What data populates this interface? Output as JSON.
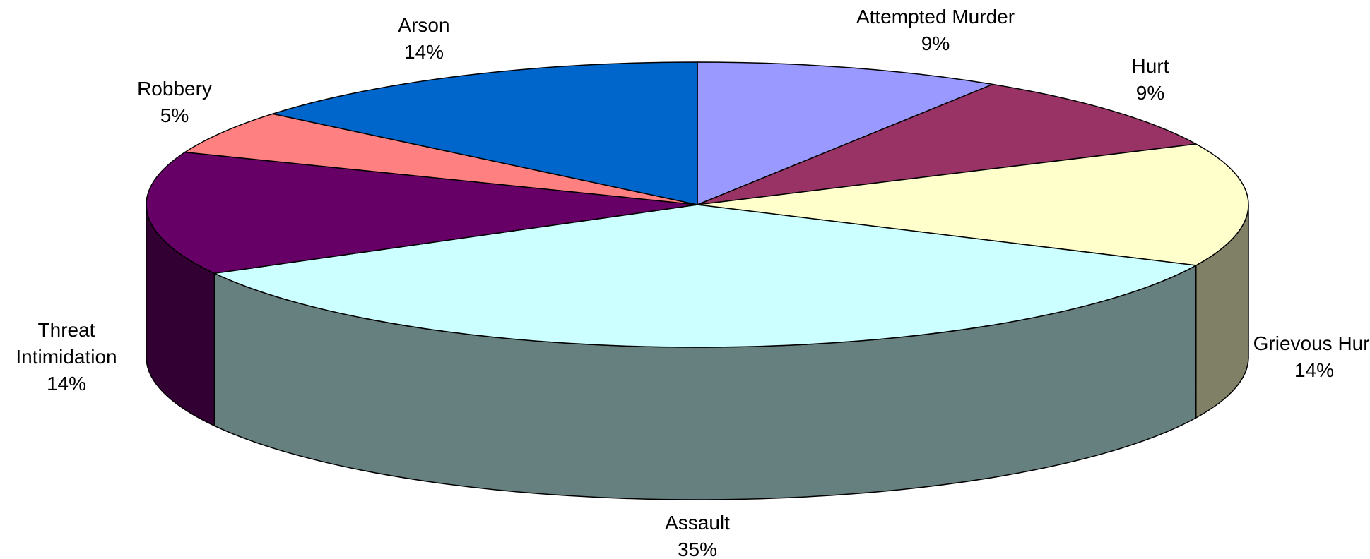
{
  "chart_data": {
    "type": "pie3d",
    "categories": [
      "Attempted Murder",
      "Hurt",
      "Grievous Hurt",
      "Assault",
      "Threat Intimidation",
      "Robbery",
      "Arson"
    ],
    "values": [
      9,
      9,
      14,
      35,
      14,
      5,
      14
    ],
    "value_labels": [
      "9%",
      "9%",
      "14%",
      "35%",
      "14%",
      "5%",
      "14%"
    ],
    "colors": [
      "#9999ff",
      "#993366",
      "#ffffcc",
      "#ccffff",
      "#660066",
      "#ff8080",
      "#0066cc"
    ]
  }
}
